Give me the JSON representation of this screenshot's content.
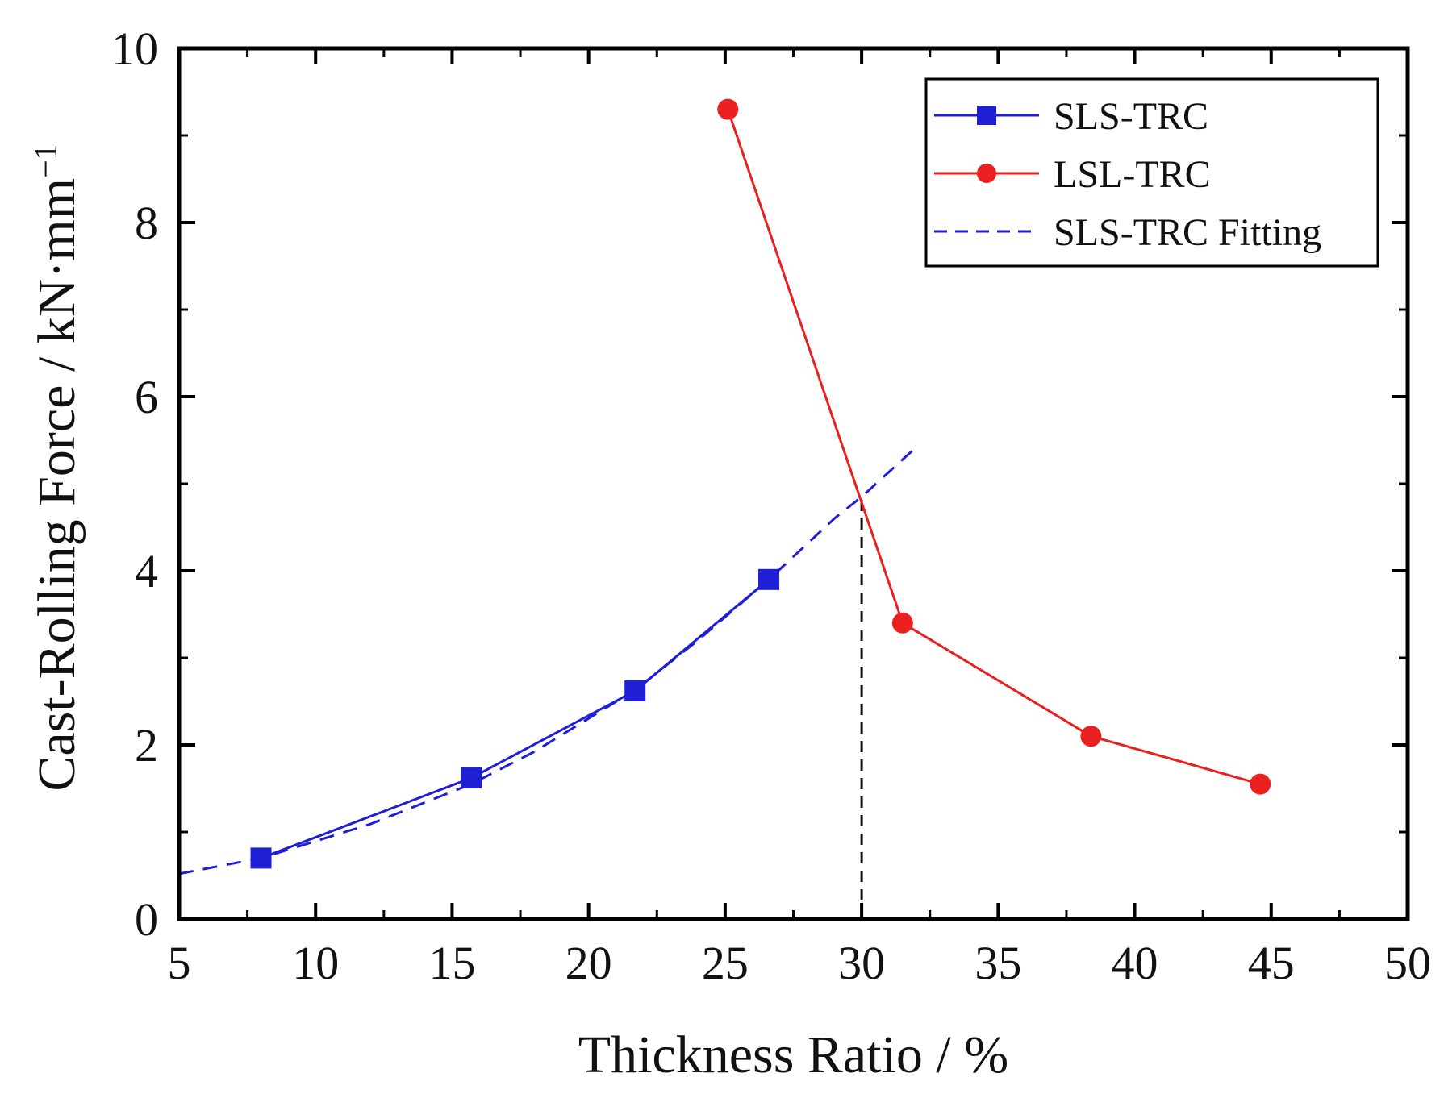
{
  "chart_data": {
    "type": "line",
    "title": "",
    "xlabel": "Thickness Ratio / %",
    "ylabel_main": "Cast-Rolling Force / kN·mm",
    "ylabel_sup": "−1",
    "xlim": [
      5,
      50
    ],
    "ylim": [
      0,
      10
    ],
    "xticks": [
      5,
      10,
      15,
      20,
      25,
      30,
      35,
      40,
      45,
      50
    ],
    "yticks": [
      0,
      2,
      4,
      6,
      8,
      10
    ],
    "grid": false,
    "legend_position": "top-right",
    "series": [
      {
        "name": "SLS-TRC",
        "color": "#1f1fd6",
        "marker": "square",
        "line": "solid",
        "x": [
          8.0,
          15.7,
          21.7,
          26.6
        ],
        "y": [
          0.7,
          1.62,
          2.62,
          3.9
        ]
      },
      {
        "name": "LSL-TRC",
        "color": "#ea1f1f",
        "marker": "circle",
        "line": "solid",
        "x": [
          25.1,
          31.5,
          38.4,
          44.6
        ],
        "y": [
          9.3,
          3.4,
          2.1,
          1.55
        ]
      },
      {
        "name": "SLS-TRC Fitting",
        "color": "#1f1fd6",
        "marker": "none",
        "line": "dashed",
        "x": [
          5.0,
          8.0,
          12.0,
          15.7,
          18.0,
          21.7,
          24.0,
          26.6,
          29.0,
          30.0,
          32.0
        ],
        "y": [
          0.52,
          0.7,
          1.09,
          1.55,
          1.92,
          2.63,
          3.2,
          3.9,
          4.6,
          4.85,
          5.42
        ]
      }
    ],
    "annotations": [
      {
        "type": "vertical_dashed_line",
        "x": 30.0,
        "y_from": 0,
        "y_to": 4.85,
        "color": "#111111"
      }
    ]
  }
}
